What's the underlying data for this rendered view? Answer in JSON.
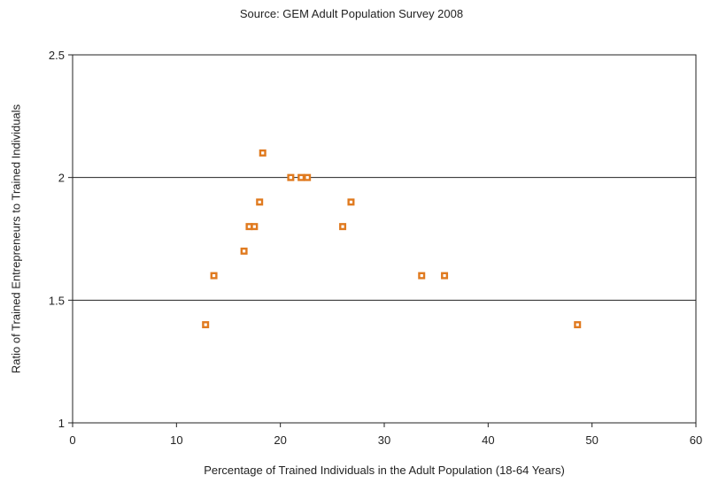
{
  "chart_data": {
    "type": "scatter",
    "title": "Source: GEM Adult Population Survey 2008",
    "xlabel": "Percentage of Trained Individuals in the Adult Population (18-64 Years)",
    "ylabel": "Ratio of Trained Entrepreneurs to Trained Individuals",
    "xlim": [
      0,
      60
    ],
    "ylim": [
      1,
      2.5
    ],
    "xticks": [
      "0",
      "10",
      "20",
      "30",
      "40",
      "50",
      "60"
    ],
    "yticks": [
      "1",
      "1.5",
      "2",
      "2.5"
    ],
    "grid": "horizontal",
    "marker_color": "#e07a1f",
    "series": [
      {
        "points": [
          {
            "x": 12.8,
            "y": 1.4
          },
          {
            "x": 13.6,
            "y": 1.6
          },
          {
            "x": 16.5,
            "y": 1.7
          },
          {
            "x": 17.0,
            "y": 1.8
          },
          {
            "x": 17.5,
            "y": 1.8
          },
          {
            "x": 18.0,
            "y": 1.9
          },
          {
            "x": 18.3,
            "y": 2.1
          },
          {
            "x": 21.0,
            "y": 2.0
          },
          {
            "x": 22.0,
            "y": 2.0
          },
          {
            "x": 22.6,
            "y": 2.0
          },
          {
            "x": 26.0,
            "y": 1.8
          },
          {
            "x": 26.8,
            "y": 1.9
          },
          {
            "x": 33.6,
            "y": 1.6
          },
          {
            "x": 35.8,
            "y": 1.6
          },
          {
            "x": 48.6,
            "y": 1.4
          }
        ]
      }
    ]
  }
}
